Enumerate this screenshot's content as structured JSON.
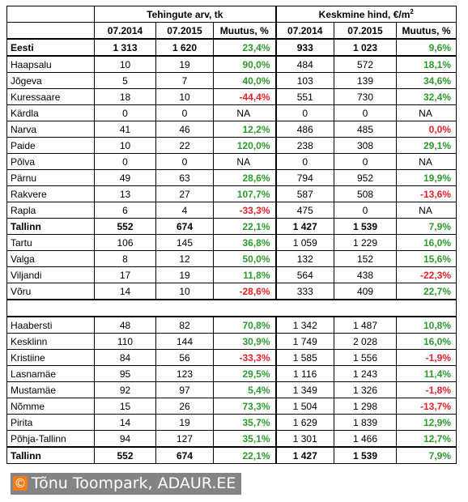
{
  "header": {
    "group1": "Tehingute arv, tk",
    "group2": "Keskmine hind, €/m",
    "group2_sup": "2",
    "col_a": "07.2014",
    "col_b": "07.2015",
    "col_change": "Muutus, %"
  },
  "rows": [
    {
      "name": "Eesti",
      "c1": "1 313",
      "c2": "1 620",
      "c3": "23,4%",
      "p1": "933",
      "p2": "1 023",
      "p3": "9,6%",
      "bold": true,
      "s3": "pos",
      "sp3": "pos"
    },
    {
      "name": "Haapsalu",
      "c1": "10",
      "c2": "19",
      "c3": "90,0%",
      "p1": "484",
      "p2": "572",
      "p3": "18,1%",
      "s3": "pos",
      "sp3": "pos"
    },
    {
      "name": "Jõgeva",
      "c1": "5",
      "c2": "7",
      "c3": "40,0%",
      "p1": "103",
      "p2": "139",
      "p3": "34,6%",
      "s3": "pos",
      "sp3": "pos"
    },
    {
      "name": "Kuressaare",
      "c1": "18",
      "c2": "10",
      "c3": "-44,4%",
      "p1": "551",
      "p2": "730",
      "p3": "32,4%",
      "s3": "neg",
      "sp3": "pos"
    },
    {
      "name": "Kärdla",
      "c1": "0",
      "c2": "0",
      "c3": "NA",
      "p1": "0",
      "p2": "0",
      "p3": "NA",
      "s3": "na",
      "sp3": "na"
    },
    {
      "name": "Narva",
      "c1": "41",
      "c2": "46",
      "c3": "12,2%",
      "p1": "486",
      "p2": "485",
      "p3": "0,0%",
      "s3": "pos",
      "sp3": "neg"
    },
    {
      "name": "Paide",
      "c1": "10",
      "c2": "22",
      "c3": "120,0%",
      "p1": "238",
      "p2": "308",
      "p3": "29,1%",
      "s3": "pos",
      "sp3": "pos"
    },
    {
      "name": "Põlva",
      "c1": "0",
      "c2": "0",
      "c3": "NA",
      "p1": "0",
      "p2": "0",
      "p3": "NA",
      "s3": "na",
      "sp3": "na"
    },
    {
      "name": "Pärnu",
      "c1": "49",
      "c2": "63",
      "c3": "28,6%",
      "p1": "794",
      "p2": "952",
      "p3": "19,9%",
      "s3": "pos",
      "sp3": "pos"
    },
    {
      "name": "Rakvere",
      "c1": "13",
      "c2": "27",
      "c3": "107,7%",
      "p1": "587",
      "p2": "508",
      "p3": "-13,6%",
      "s3": "pos",
      "sp3": "neg"
    },
    {
      "name": "Rapla",
      "c1": "6",
      "c2": "4",
      "c3": "-33,3%",
      "p1": "475",
      "p2": "0",
      "p3": "NA",
      "s3": "neg",
      "sp3": "na"
    },
    {
      "name": "Tallinn",
      "c1": "552",
      "c2": "674",
      "c3": "22,1%",
      "p1": "1 427",
      "p2": "1 539",
      "p3": "7,9%",
      "bold": true,
      "s3": "pos",
      "sp3": "pos"
    },
    {
      "name": "Tartu",
      "c1": "106",
      "c2": "145",
      "c3": "36,8%",
      "p1": "1 059",
      "p2": "1 229",
      "p3": "16,0%",
      "s3": "pos",
      "sp3": "pos"
    },
    {
      "name": "Valga",
      "c1": "8",
      "c2": "12",
      "c3": "50,0%",
      "p1": "132",
      "p2": "152",
      "p3": "15,6%",
      "s3": "pos",
      "sp3": "pos"
    },
    {
      "name": "Viljandi",
      "c1": "17",
      "c2": "19",
      "c3": "11,8%",
      "p1": "564",
      "p2": "438",
      "p3": "-22,3%",
      "s3": "pos",
      "sp3": "neg"
    },
    {
      "name": "Võru",
      "c1": "14",
      "c2": "10",
      "c3": "-28,6%",
      "p1": "333",
      "p2": "409",
      "p3": "22,7%",
      "s3": "neg",
      "sp3": "pos"
    }
  ],
  "districts": [
    {
      "name": "Haabersti",
      "c1": "48",
      "c2": "82",
      "c3": "70,8%",
      "p1": "1 342",
      "p2": "1 487",
      "p3": "10,8%",
      "s3": "pos",
      "sp3": "pos"
    },
    {
      "name": "Kesklinn",
      "c1": "110",
      "c2": "144",
      "c3": "30,9%",
      "p1": "1 749",
      "p2": "2 028",
      "p3": "16,0%",
      "s3": "pos",
      "sp3": "pos"
    },
    {
      "name": "Kristiine",
      "c1": "84",
      "c2": "56",
      "c3": "-33,3%",
      "p1": "1 585",
      "p2": "1 556",
      "p3": "-1,9%",
      "s3": "neg",
      "sp3": "neg"
    },
    {
      "name": "Lasnamäe",
      "c1": "95",
      "c2": "123",
      "c3": "29,5%",
      "p1": "1 116",
      "p2": "1 243",
      "p3": "11,4%",
      "s3": "pos",
      "sp3": "pos"
    },
    {
      "name": "Mustamäe",
      "c1": "92",
      "c2": "97",
      "c3": "5,4%",
      "p1": "1 349",
      "p2": "1 326",
      "p3": "-1,8%",
      "s3": "pos",
      "sp3": "neg"
    },
    {
      "name": "Nõmme",
      "c1": "15",
      "c2": "26",
      "c3": "73,3%",
      "p1": "1 504",
      "p2": "1 298",
      "p3": "-13,7%",
      "s3": "pos",
      "sp3": "neg"
    },
    {
      "name": "Pirita",
      "c1": "14",
      "c2": "19",
      "c3": "35,7%",
      "p1": "1 629",
      "p2": "1 839",
      "p3": "12,9%",
      "s3": "pos",
      "sp3": "pos"
    },
    {
      "name": "Põhja-Tallinn",
      "c1": "94",
      "c2": "127",
      "c3": "35,1%",
      "p1": "1 301",
      "p2": "1 466",
      "p3": "12,7%",
      "s3": "pos",
      "sp3": "pos"
    },
    {
      "name": "Tallinn",
      "c1": "552",
      "c2": "674",
      "c3": "22,1%",
      "p1": "1 427",
      "p2": "1 539",
      "p3": "7,9%",
      "bold": true,
      "s3": "pos",
      "sp3": "pos"
    }
  ],
  "credit": {
    "icon": "copyright-icon",
    "symbol": "©",
    "text": "Tõnu Toompark, ADAUR.EE"
  },
  "colors": {
    "positive": "#2e9a2e",
    "negative": "#e8202a",
    "credit_bg": "#848484",
    "credit_icon": "#f07d1a"
  }
}
